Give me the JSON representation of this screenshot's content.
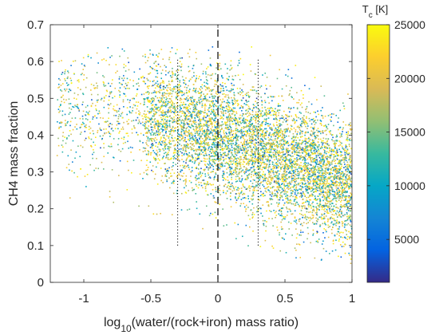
{
  "chart_data": {
    "type": "scatter",
    "title": "",
    "xlabel": "log10(water/(rock+iron) mass ratio)",
    "xlabel_parts": {
      "pre": "log",
      "sub": "10",
      "post": "(water/(rock+iron) mass ratio)"
    },
    "ylabel": "CH4 mass fraction",
    "xlim": [
      -1.25,
      1
    ],
    "ylim": [
      0,
      0.7
    ],
    "xticks": [
      -1,
      -0.5,
      0,
      0.5,
      1
    ],
    "xtick_labels": [
      "-1",
      "-0.5",
      "0",
      "0.5",
      "1"
    ],
    "yticks": [
      0,
      0.1,
      0.2,
      0.3,
      0.4,
      0.5,
      0.6,
      0.7
    ],
    "ytick_labels": [
      "0",
      "0.1",
      "0.2",
      "0.3",
      "0.4",
      "0.5",
      "0.6",
      "0.7"
    ],
    "grid": false,
    "reference_lines": [
      {
        "x": -0.3,
        "y_range": [
          0.1,
          0.61
        ],
        "style": "dotted"
      },
      {
        "x": 0,
        "y_range": [
          0,
          0.7
        ],
        "style": "dashed"
      },
      {
        "x": 0.3,
        "y_range": [
          0.1,
          0.61
        ],
        "style": "dotted"
      }
    ],
    "colorbar": {
      "title": "Tc [K]",
      "title_parts": {
        "pre": "T",
        "sub": "c",
        "post": " [K]"
      },
      "range": [
        1000,
        25000
      ],
      "ticks": [
        5000,
        10000,
        15000,
        20000,
        25000
      ],
      "tick_labels": [
        "5000",
        "10000",
        "15000",
        "20000",
        "25000"
      ],
      "colormap": "parula",
      "colors": [
        "#352a87",
        "#0363e1",
        "#1485d4",
        "#06a7c6",
        "#38b99e",
        "#92bf73",
        "#d9ba56",
        "#fcce2e",
        "#f9fb0e"
      ]
    },
    "point_cloud": {
      "n_points": 7000,
      "seed": 12345,
      "x_range": [
        -1.2,
        1.0
      ],
      "y_trend": {
        "x": [
          -1.2,
          -0.5,
          0,
          0.5,
          1.0
        ],
        "y": [
          0.47,
          0.45,
          0.4,
          0.33,
          0.26
        ]
      },
      "y_spread": 0.085,
      "y_bounds": [
        0.05,
        0.64
      ],
      "c_range": [
        1000,
        25000
      ]
    }
  }
}
